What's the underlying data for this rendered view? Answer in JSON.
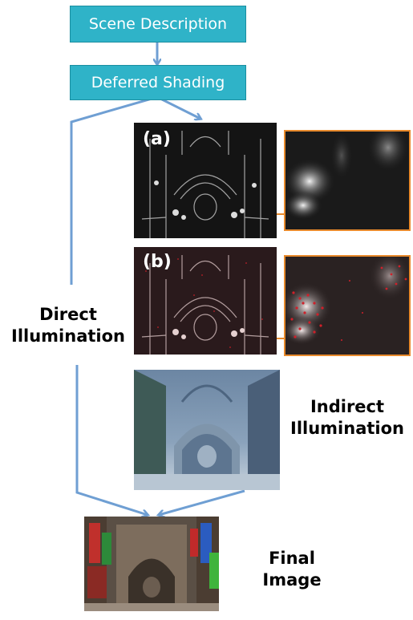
{
  "nodes": {
    "scene": "Scene Description",
    "deferred": "Deferred Shading"
  },
  "labels": {
    "direct_line1": "Direct",
    "direct_line2": "Illumination",
    "indirect_line1": "Indirect",
    "indirect_line2": "Illumination",
    "final_line1": "Final",
    "final_line2": "Image"
  },
  "panels": {
    "a_tag": "(a)",
    "b_tag": "(b)"
  },
  "colors": {
    "box_fill": "#2fb3c8",
    "arrow": "#6f9fd3",
    "callout": "#e88a2c",
    "noise_red": "#d0202a"
  }
}
